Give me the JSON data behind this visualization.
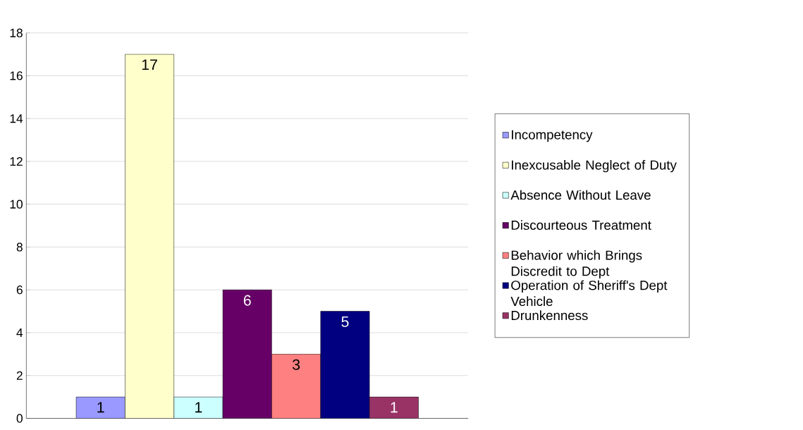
{
  "chart_data": {
    "type": "bar",
    "categories": [
      null
    ],
    "series": [
      {
        "name": "Incompetency",
        "color": "#9999ff",
        "values": [
          1
        ]
      },
      {
        "name": "Inexcusable Neglect of Duty",
        "color": "#ffffcc",
        "values": [
          17
        ]
      },
      {
        "name": "Absence Without Leave",
        "color": "#ccffff",
        "values": [
          1
        ]
      },
      {
        "name": "Discourteous Treatment",
        "color": "#660066",
        "values": [
          6
        ]
      },
      {
        "name": "Behavior which Brings Discredit to Dept",
        "color": "#ff8080",
        "values": [
          3
        ]
      },
      {
        "name": "Operation of Sheriff's Dept Vehicle",
        "color": "#000080",
        "values": [
          5
        ]
      },
      {
        "name": "Drunkenness",
        "color": "#993366",
        "values": [
          1
        ]
      }
    ],
    "ylim": [
      0,
      18
    ],
    "yticks": [
      0,
      2,
      4,
      6,
      8,
      10,
      12,
      14,
      16,
      18
    ],
    "grid": "y",
    "legend": "right",
    "data_labels": true
  }
}
